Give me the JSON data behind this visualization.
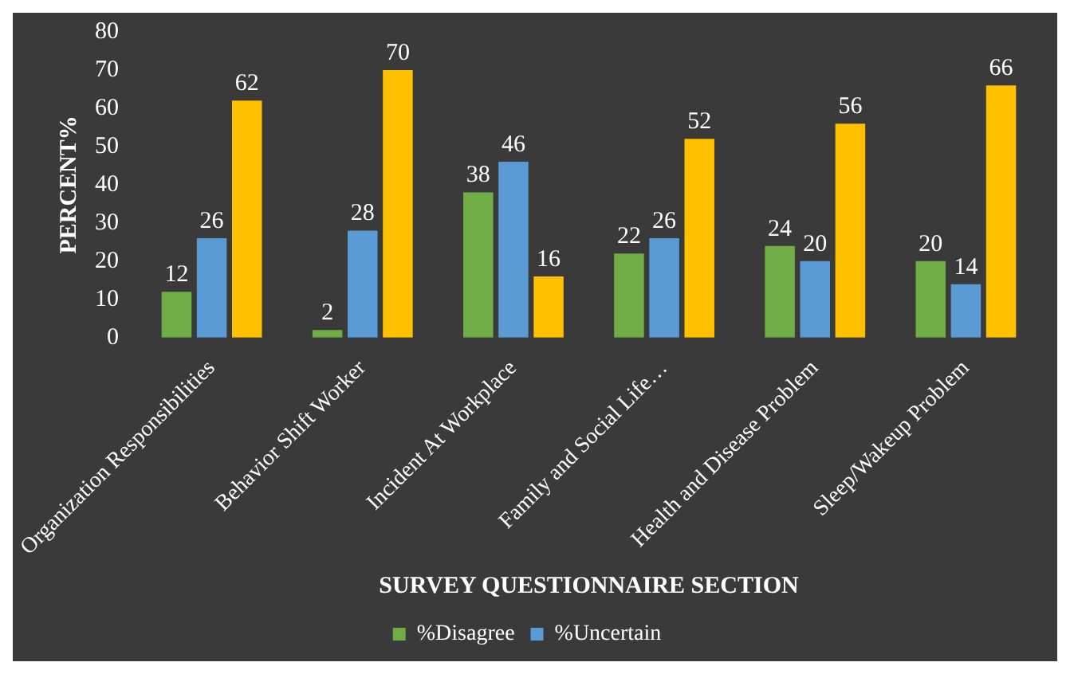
{
  "chart_data": {
    "type": "bar",
    "xlabel": "SURVEY QUESTIONNAIRE SECTION",
    "ylabel": "PERCENT%",
    "categories": [
      "Organization Responsibilities",
      "Behavior Shift Worker",
      "Incident At Workplace",
      "Family and Social Life…",
      "Health and Disease Problem",
      "Sleep/Wakeup Problem"
    ],
    "series": [
      {
        "name": "%Disagree",
        "color": "#70ad47",
        "values": [
          12,
          2,
          38,
          22,
          24,
          20
        ]
      },
      {
        "name": "%Uncertain",
        "color": "#5b9bd5",
        "values": [
          26,
          28,
          46,
          26,
          20,
          14
        ]
      },
      {
        "color": "#ffc000",
        "values": [
          62,
          70,
          16,
          52,
          56,
          66
        ]
      }
    ],
    "ylim": [
      0,
      80
    ],
    "yticks": [
      0,
      10,
      20,
      30,
      40,
      50,
      60,
      70,
      80
    ],
    "grid": false,
    "legend": "bottom",
    "data_labels": true
  }
}
